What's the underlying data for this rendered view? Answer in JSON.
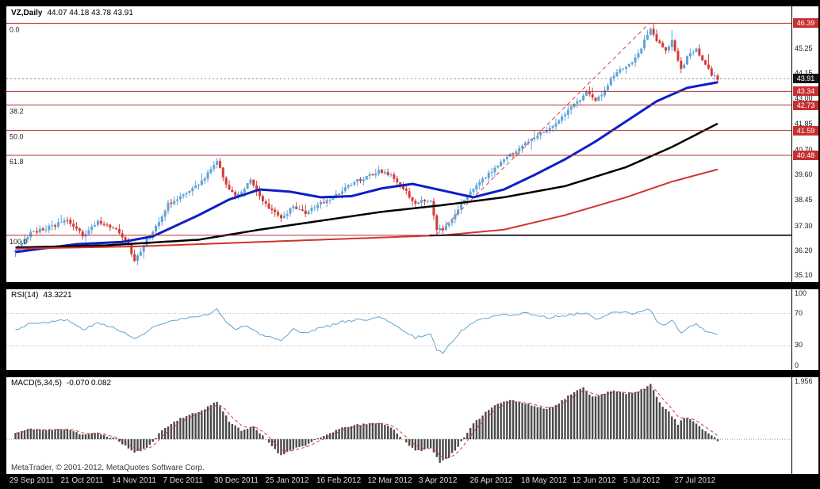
{
  "header": {
    "symbol_timeframe": "VZ,Daily",
    "ohlc_text": "44.07 44.18 43.78 43.91"
  },
  "footer": {
    "copyright": "MetaTrader, © 2001-2012, MetaQuotes Software Corp."
  },
  "colors": {
    "background": "#000000",
    "panel": "#ffffff",
    "candle_up": "#5ea4d9",
    "candle_down": "#d43a34",
    "ma_fast": "#0d1fc4",
    "ma_mid": "#000000",
    "ma_slow": "#d0342c",
    "fib": "#b23330",
    "fib_label": "#222222",
    "trend": "#c94545",
    "bid_line": "#8a8a8a",
    "ray": "#000000",
    "rsi_line": "#64a3d0",
    "rsi_guide": "#b5b5b5",
    "macd_bar": "#4a4a4a",
    "macd_signal": "#d43a34",
    "badge_red": "#c92f2f",
    "badge_black": "#141414"
  },
  "chart_data": {
    "type": "candlestick",
    "symbol": "VZ",
    "timeframe": "Daily",
    "title": "VZ,Daily 44.07 44.18 43.78 43.91",
    "ohlc": {
      "open": 44.07,
      "high": 44.18,
      "low": 43.78,
      "close": 43.91
    },
    "bars": 231,
    "x_labels": [
      "29 Sep 2011",
      "21 Oct 2011",
      "14 Nov 2011",
      "7 Dec 2011",
      "30 Dec 2011",
      "25 Jan 2012",
      "16 Feb 2012",
      "12 Mar 2012",
      "3 Apr 2012",
      "26 Apr 2012",
      "18 May 2012",
      "12 Jun 2012",
      "5 Jul 2012",
      "27 Jul 2012"
    ],
    "price_axis": {
      "min": 34.8,
      "max": 47.15,
      "ticks": [
        45.25,
        44.15,
        43.0,
        41.85,
        40.7,
        39.6,
        38.45,
        37.3,
        36.2,
        35.1
      ]
    },
    "close_path": [
      [
        0,
        36.3
      ],
      [
        5,
        37.0
      ],
      [
        12,
        37.3
      ],
      [
        17,
        37.6
      ],
      [
        22,
        36.9
      ],
      [
        27,
        37.5
      ],
      [
        33,
        37.1
      ],
      [
        37,
        36.5
      ],
      [
        39,
        35.7
      ],
      [
        42,
        36.5
      ],
      [
        46,
        37.3
      ],
      [
        50,
        38.3
      ],
      [
        54,
        38.6
      ],
      [
        57,
        38.9
      ],
      [
        61,
        39.3
      ],
      [
        66,
        40.2
      ],
      [
        69,
        39.2
      ],
      [
        72,
        38.6
      ],
      [
        75,
        39.0
      ],
      [
        77,
        39.4
      ],
      [
        80,
        38.6
      ],
      [
        84,
        38.0
      ],
      [
        87,
        37.6
      ],
      [
        91,
        38.2
      ],
      [
        95,
        37.9
      ],
      [
        99,
        38.3
      ],
      [
        103,
        38.5
      ],
      [
        107,
        38.9
      ],
      [
        111,
        39.3
      ],
      [
        115,
        39.5
      ],
      [
        119,
        39.8
      ],
      [
        123,
        39.6
      ],
      [
        127,
        39.0
      ],
      [
        131,
        38.3
      ],
      [
        133,
        38.5
      ],
      [
        136,
        38.4
      ],
      [
        138,
        37.2
      ],
      [
        140,
        37.1
      ],
      [
        143,
        37.6
      ],
      [
        146,
        38.3
      ],
      [
        149,
        38.9
      ],
      [
        153,
        39.4
      ],
      [
        157,
        39.9
      ],
      [
        160,
        40.3
      ],
      [
        163,
        40.6
      ],
      [
        167,
        41.0
      ],
      [
        171,
        41.4
      ],
      [
        175,
        41.7
      ],
      [
        178,
        42.0
      ],
      [
        181,
        42.5
      ],
      [
        185,
        43.0
      ],
      [
        187,
        43.3
      ],
      [
        190,
        42.9
      ],
      [
        193,
        43.4
      ],
      [
        195,
        43.9
      ],
      [
        198,
        44.3
      ],
      [
        202,
        44.6
      ],
      [
        205,
        45.3
      ],
      [
        208,
        46.2
      ],
      [
        210,
        45.6
      ],
      [
        213,
        45.2
      ],
      [
        215,
        45.6
      ],
      [
        218,
        44.3
      ],
      [
        220,
        44.9
      ],
      [
        223,
        45.2
      ],
      [
        226,
        44.6
      ],
      [
        228,
        44.1
      ],
      [
        230,
        43.91
      ]
    ],
    "moving_averages": [
      {
        "name": "fast-blue",
        "color_key": "ma_fast",
        "width": 3,
        "path": [
          [
            0,
            36.15
          ],
          [
            20,
            36.5
          ],
          [
            35,
            36.6
          ],
          [
            45,
            36.85
          ],
          [
            60,
            37.8
          ],
          [
            70,
            38.5
          ],
          [
            80,
            38.95
          ],
          [
            90,
            38.85
          ],
          [
            100,
            38.6
          ],
          [
            110,
            38.65
          ],
          [
            120,
            39.0
          ],
          [
            130,
            39.2
          ],
          [
            140,
            38.9
          ],
          [
            150,
            38.6
          ],
          [
            160,
            38.95
          ],
          [
            170,
            39.6
          ],
          [
            180,
            40.3
          ],
          [
            190,
            41.1
          ],
          [
            200,
            42.0
          ],
          [
            210,
            42.9
          ],
          [
            220,
            43.5
          ],
          [
            230,
            43.75
          ]
        ]
      },
      {
        "name": "mid-black",
        "color_key": "ma_mid",
        "width": 2.5,
        "path": [
          [
            0,
            36.35
          ],
          [
            30,
            36.45
          ],
          [
            60,
            36.7
          ],
          [
            80,
            37.15
          ],
          [
            100,
            37.55
          ],
          [
            120,
            37.95
          ],
          [
            140,
            38.25
          ],
          [
            160,
            38.6
          ],
          [
            180,
            39.1
          ],
          [
            200,
            39.95
          ],
          [
            215,
            40.85
          ],
          [
            230,
            41.9
          ]
        ]
      },
      {
        "name": "slow-red",
        "color_key": "ma_slow",
        "width": 2,
        "path": [
          [
            0,
            36.3
          ],
          [
            40,
            36.4
          ],
          [
            80,
            36.6
          ],
          [
            120,
            36.8
          ],
          [
            140,
            36.9
          ],
          [
            160,
            37.15
          ],
          [
            180,
            37.8
          ],
          [
            200,
            38.6
          ],
          [
            215,
            39.3
          ],
          [
            230,
            39.85
          ]
        ]
      }
    ],
    "fibonacci": {
      "levels": [
        {
          "label": "0.0",
          "price": 46.39
        },
        {
          "label": "38.2",
          "price": 42.73
        },
        {
          "label": "50.0",
          "price": 41.59
        },
        {
          "label": "61.8",
          "price": 40.48
        },
        {
          "label": "100.0",
          "price": 36.9
        }
      ],
      "trendline": {
        "from_bar": 138,
        "from_price": 36.9,
        "to_bar": 208,
        "to_price": 46.39
      }
    },
    "support_line": {
      "price": 43.34
    },
    "ray_line": {
      "price": 36.9,
      "from_bar": 136
    },
    "bid_price": 43.91,
    "badges": [
      {
        "price": 46.39,
        "style": "red"
      },
      {
        "price": 43.91,
        "style": "black"
      },
      {
        "price": 43.34,
        "style": "red"
      },
      {
        "price": 42.73,
        "style": "red"
      },
      {
        "price": 41.59,
        "style": "red"
      },
      {
        "price": 40.48,
        "style": "red"
      }
    ],
    "rsi": {
      "label": "RSI(14)",
      "value": "43.3221",
      "ticks": [
        100,
        70,
        30,
        0
      ],
      "guide_levels": [
        70,
        30
      ],
      "range": [
        0,
        100
      ],
      "path": [
        [
          0,
          50
        ],
        [
          5,
          58
        ],
        [
          12,
          60
        ],
        [
          17,
          62
        ],
        [
          22,
          50
        ],
        [
          27,
          58
        ],
        [
          33,
          52
        ],
        [
          39,
          38
        ],
        [
          46,
          55
        ],
        [
          54,
          63
        ],
        [
          61,
          66
        ],
        [
          66,
          75
        ],
        [
          69,
          60
        ],
        [
          72,
          50
        ],
        [
          75,
          55
        ],
        [
          80,
          45
        ],
        [
          84,
          40
        ],
        [
          87,
          35
        ],
        [
          91,
          50
        ],
        [
          95,
          45
        ],
        [
          99,
          52
        ],
        [
          103,
          55
        ],
        [
          107,
          60
        ],
        [
          111,
          62
        ],
        [
          115,
          63
        ],
        [
          119,
          65
        ],
        [
          123,
          60
        ],
        [
          127,
          48
        ],
        [
          131,
          40
        ],
        [
          136,
          45
        ],
        [
          138,
          25
        ],
        [
          140,
          22
        ],
        [
          143,
          35
        ],
        [
          146,
          48
        ],
        [
          149,
          58
        ],
        [
          153,
          63
        ],
        [
          157,
          68
        ],
        [
          160,
          70
        ],
        [
          163,
          68
        ],
        [
          167,
          70
        ],
        [
          171,
          68
        ],
        [
          175,
          65
        ],
        [
          181,
          68
        ],
        [
          185,
          70
        ],
        [
          187,
          72
        ],
        [
          190,
          62
        ],
        [
          193,
          66
        ],
        [
          195,
          70
        ],
        [
          198,
          72
        ],
        [
          202,
          70
        ],
        [
          205,
          73
        ],
        [
          208,
          75
        ],
        [
          210,
          60
        ],
        [
          213,
          55
        ],
        [
          215,
          62
        ],
        [
          218,
          45
        ],
        [
          220,
          52
        ],
        [
          223,
          57
        ],
        [
          226,
          48
        ],
        [
          228,
          45
        ],
        [
          230,
          43
        ]
      ]
    },
    "macd": {
      "label": "MACD(5,34,5)",
      "value": "-0.070 0.082",
      "ticks": [
        1.956
      ],
      "range": [
        -1.15,
        2.05
      ],
      "path": [
        [
          0,
          0.2
        ],
        [
          5,
          0.35
        ],
        [
          10,
          0.3
        ],
        [
          17,
          0.35
        ],
        [
          22,
          0.15
        ],
        [
          27,
          0.2
        ],
        [
          33,
          0
        ],
        [
          39,
          -0.45
        ],
        [
          43,
          -0.3
        ],
        [
          48,
          0.3
        ],
        [
          54,
          0.7
        ],
        [
          60,
          0.9
        ],
        [
          66,
          1.25
        ],
        [
          70,
          0.6
        ],
        [
          74,
          0.3
        ],
        [
          78,
          0.4
        ],
        [
          82,
          0
        ],
        [
          87,
          -0.55
        ],
        [
          90,
          -0.35
        ],
        [
          95,
          -0.2
        ],
        [
          100,
          0.05
        ],
        [
          105,
          0.3
        ],
        [
          110,
          0.45
        ],
        [
          115,
          0.5
        ],
        [
          119,
          0.55
        ],
        [
          123,
          0.4
        ],
        [
          127,
          0
        ],
        [
          131,
          -0.4
        ],
        [
          136,
          -0.3
        ],
        [
          139,
          -0.75
        ],
        [
          142,
          -0.6
        ],
        [
          146,
          -0.1
        ],
        [
          150,
          0.5
        ],
        [
          154,
          0.9
        ],
        [
          158,
          1.2
        ],
        [
          162,
          1.3
        ],
        [
          166,
          1.2
        ],
        [
          170,
          1.1
        ],
        [
          174,
          1.0
        ],
        [
          178,
          1.2
        ],
        [
          182,
          1.5
        ],
        [
          186,
          1.7
        ],
        [
          189,
          1.4
        ],
        [
          192,
          1.5
        ],
        [
          196,
          1.6
        ],
        [
          200,
          1.5
        ],
        [
          204,
          1.6
        ],
        [
          208,
          1.8
        ],
        [
          211,
          1.2
        ],
        [
          214,
          0.9
        ],
        [
          217,
          0.5
        ],
        [
          219,
          0.7
        ],
        [
          222,
          0.6
        ],
        [
          225,
          0.35
        ],
        [
          228,
          0.15
        ],
        [
          230,
          -0.07
        ]
      ]
    }
  }
}
